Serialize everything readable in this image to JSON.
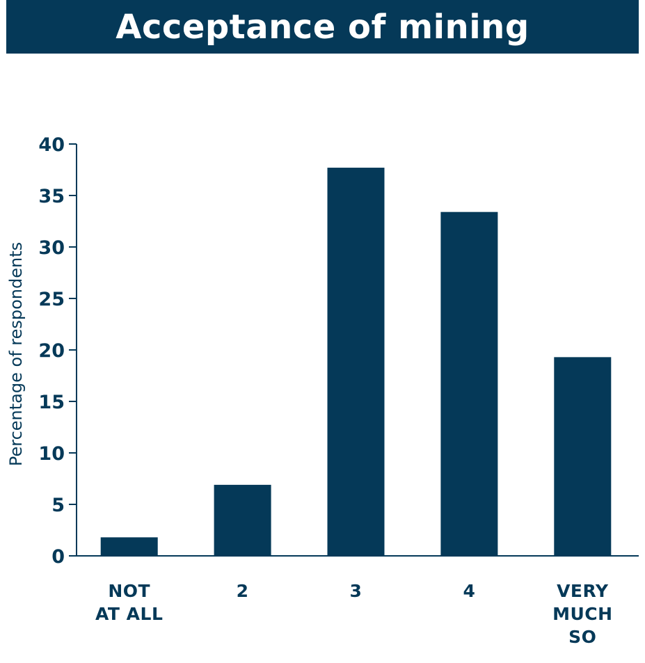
{
  "chart_data": {
    "type": "bar",
    "title": "Acceptance of mining",
    "ylabel": "Percentage of respondents",
    "xlabel": "",
    "categories": [
      [
        "NOT",
        "AT ALL"
      ],
      [
        "2"
      ],
      [
        "3"
      ],
      [
        "4"
      ],
      [
        "VERY",
        "MUCH",
        "SO"
      ]
    ],
    "values": [
      1.8,
      6.9,
      37.7,
      33.4,
      19.3
    ],
    "ylim": [
      0,
      40
    ],
    "yticks": [
      0,
      5,
      10,
      15,
      20,
      25,
      30,
      35,
      40
    ],
    "grid": false,
    "colors": {
      "bar": "#053958",
      "title_bg": "#053958",
      "text": "#053958"
    }
  }
}
